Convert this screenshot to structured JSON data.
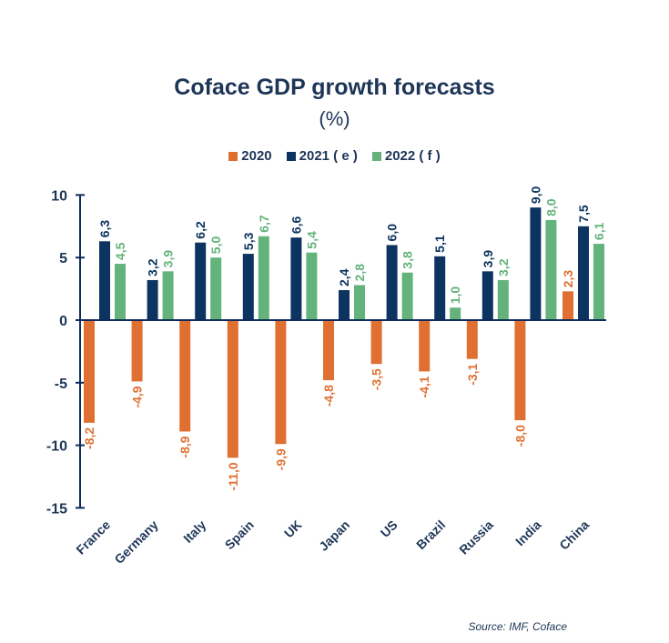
{
  "chart_data": {
    "type": "bar",
    "title": "Coface GDP growth forecasts",
    "subtitle": "(%)",
    "xlabel": "",
    "ylabel": "",
    "ylim": [
      -15,
      10
    ],
    "yticks": [
      10,
      5,
      0,
      -5,
      -10,
      -15
    ],
    "ytick_labels": [
      "10",
      "5",
      "0",
      "-5",
      "-10",
      "-15"
    ],
    "grid": false,
    "legend_position": "top-center",
    "categories": [
      "France",
      "Germany",
      "Italy",
      "Spain",
      "UK",
      "Japan",
      "US",
      "Brazil",
      "Russia",
      "India",
      "China"
    ],
    "series": [
      {
        "name": "2020",
        "color": "#e07032",
        "values": [
          -8.2,
          -4.9,
          -8.9,
          -11.0,
          -9.9,
          -4.8,
          -3.5,
          -4.1,
          -3.1,
          -8.0,
          2.3
        ],
        "labels": [
          "-8,2",
          "-4,9",
          "-8,9",
          "-11,0",
          "-9,9",
          "-4,8",
          "-3,5",
          "-4,1",
          "-3,1",
          "-8,0",
          "2,3"
        ]
      },
      {
        "name": "2021 ( e )",
        "color": "#0d3460",
        "values": [
          6.3,
          3.2,
          6.2,
          5.3,
          6.6,
          2.4,
          6.0,
          5.1,
          3.9,
          9.0,
          7.5
        ],
        "labels": [
          "6,3",
          "3,2",
          "6,2",
          "5,3",
          "6,6",
          "2,4",
          "6,0",
          "5,1",
          "3,9",
          "9,0",
          "7,5"
        ]
      },
      {
        "name": "2022 ( f )",
        "color": "#63b37a",
        "values": [
          4.5,
          3.9,
          5.0,
          6.7,
          5.4,
          2.8,
          3.8,
          1.0,
          3.2,
          8.0,
          6.1
        ],
        "labels": [
          "4,5",
          "3,9",
          "5,0",
          "6,7",
          "5,4",
          "2,8",
          "3,8",
          "1,0",
          "3,2",
          "8,0",
          "6,1"
        ]
      }
    ],
    "axis_color": "#0d2a5c",
    "text_color": "#1d3557"
  },
  "source": "Source: IMF, Coface"
}
